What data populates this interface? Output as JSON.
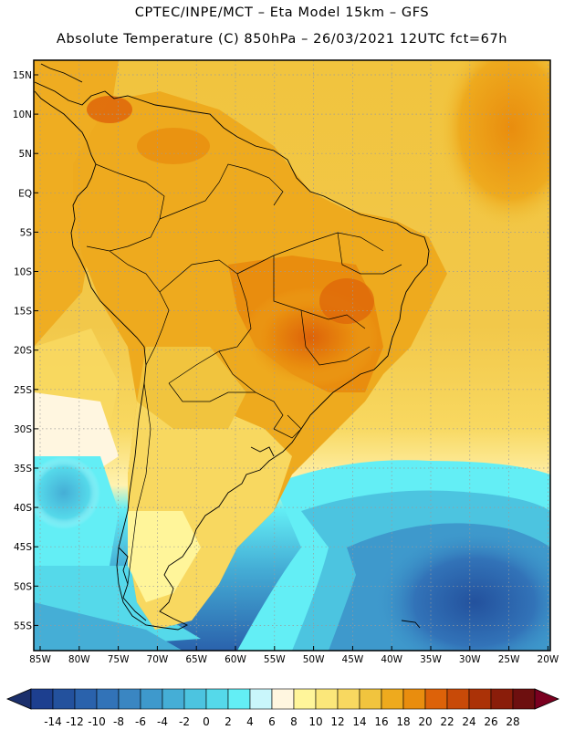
{
  "header": {
    "line1": "CPTEC/INPE/MCT –  Eta Model 15km – GFS",
    "line2": "Absolute Temperature (C) 850hPa – 26/03/2021 12UTC fct=67h"
  },
  "map": {
    "lat_labels": [
      "15N",
      "10N",
      "5N",
      "EQ",
      "5S",
      "10S",
      "15S",
      "20S",
      "25S",
      "30S",
      "35S",
      "40S",
      "45S",
      "50S",
      "55S"
    ],
    "lon_labels": [
      "85W",
      "80W",
      "75W",
      "70W",
      "65W",
      "60W",
      "55W",
      "50W",
      "45W",
      "40W",
      "35W",
      "30W",
      "25W",
      "20W"
    ]
  },
  "colorbar": {
    "ticks": [
      "-14",
      "-12",
      "-10",
      "-8",
      "-6",
      "-4",
      "-2",
      "0",
      "2",
      "4",
      "6",
      "8",
      "10",
      "12",
      "14",
      "16",
      "18",
      "20",
      "22",
      "24",
      "26",
      "28"
    ],
    "colors": [
      "#1d3f8f",
      "#23519d",
      "#2a62ac",
      "#3273b8",
      "#3a86c2",
      "#3e99cc",
      "#45aed6",
      "#4cc4e0",
      "#55d9ea",
      "#63eef5",
      "#c9f6fb",
      "#fff6e0",
      "#fff59a",
      "#fbe77a",
      "#f8d860",
      "#f1c43e",
      "#eeaa1e",
      "#e98d0e",
      "#dd6209",
      "#c84a08",
      "#ab3207",
      "#8a1d0a",
      "#6d0f0f"
    ],
    "min_color": "#1b2f6b",
    "max_color": "#7a0020"
  }
}
